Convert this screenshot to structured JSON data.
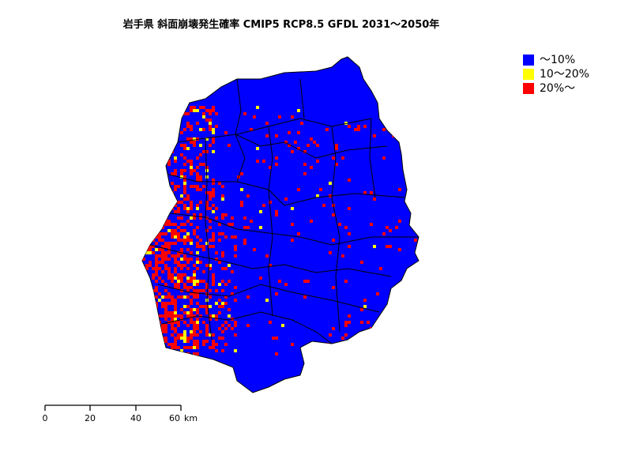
{
  "title": "岩手県 斜面崩壊発生確率 CMIP5 RCP8.5 GFDL 2031～2050年",
  "legend": [
    {
      "label": "～10%",
      "color": "#0000FF"
    },
    {
      "label": "10～20%",
      "color": "#FFFF00"
    },
    {
      "label": "20%～",
      "color": "#FF0000"
    }
  ],
  "boundary_color": "#000000",
  "scale_bar": {
    "ticks": [
      "0",
      "20",
      "40",
      "60"
    ],
    "unit": "km"
  }
}
